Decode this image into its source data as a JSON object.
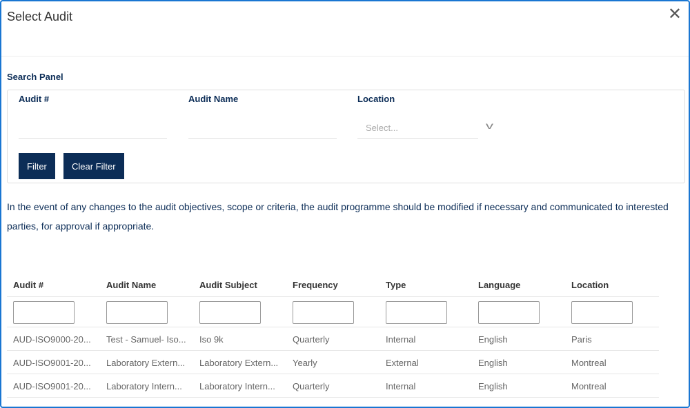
{
  "modal": {
    "title": "Select Audit",
    "close_icon": "close-icon"
  },
  "search": {
    "title": "Search Panel",
    "audit_no_label": "Audit #",
    "audit_name_label": "Audit Name",
    "location_label": "Location",
    "location_placeholder": "Select...",
    "filter_label": "Filter",
    "clear_label": "Clear Filter"
  },
  "note": "In the event of any changes to the audit objectives, scope or criteria, the audit programme should be modified if necessary and communicated to interested parties, for approval if appropriate.",
  "table": {
    "headers": [
      "Audit #",
      "Audit Name",
      "Audit Subject",
      "Frequency",
      "Type",
      "Language",
      "Location"
    ],
    "rows": [
      [
        "AUD-ISO9000-20...",
        "Test - Samuel- Iso...",
        "Iso 9k",
        "Quarterly",
        "Internal",
        "English",
        "Paris"
      ],
      [
        "AUD-ISO9001-20...",
        "Laboratory Extern...",
        "Laboratory Extern...",
        "Yearly",
        "External",
        "English",
        "Montreal"
      ],
      [
        "AUD-ISO9001-20...",
        "Laboratory Intern...",
        "Laboratory Intern...",
        "Quarterly",
        "Internal",
        "English",
        "Montreal"
      ]
    ]
  },
  "colors": {
    "accent": "#0c2d57",
    "border": "#1976d2"
  }
}
